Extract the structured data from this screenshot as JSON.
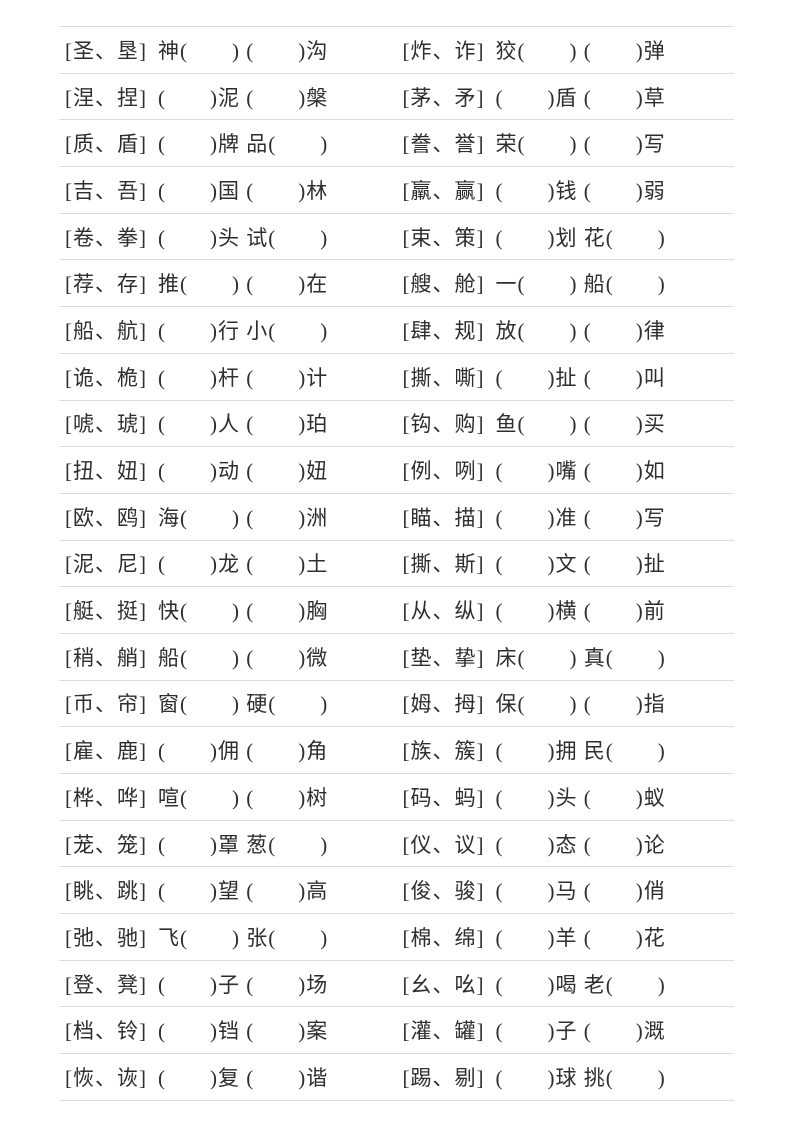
{
  "page": {
    "background_color": "#ffffff",
    "rule_color": "#dcdcdc",
    "text_color": "#2e2e2e"
  },
  "worksheet": {
    "kind": "chinese-character-choice-fill-in-blank-table",
    "columns": 2,
    "rows": [
      {
        "left": {
          "options": "[圣、垦]",
          "blanks": "神(　　) (　　)沟"
        },
        "right": {
          "options": "[炸、诈]",
          "blanks": "狡(　　) (　　)弹"
        }
      },
      {
        "left": {
          "options": "[涅、捏]",
          "blanks": "(　　)泥 (　　)槃"
        },
        "right": {
          "options": "[茅、矛]",
          "blanks": "(　　)盾 (　　)草"
        }
      },
      {
        "left": {
          "options": "[质、盾]",
          "blanks": "(　　)牌 品(　　)"
        },
        "right": {
          "options": "[誊、誉]",
          "blanks": "荣(　　) (　　)写"
        }
      },
      {
        "left": {
          "options": "[吉、吾]",
          "blanks": "(　　)国 (　　)林"
        },
        "right": {
          "options": "[羸、赢]",
          "blanks": "(　　)钱 (　　)弱"
        }
      },
      {
        "left": {
          "options": "[卷、拳]",
          "blanks": "(　　)头 试(　　)"
        },
        "right": {
          "options": "[束、策]",
          "blanks": "(　　)划 花(　　)"
        }
      },
      {
        "left": {
          "options": "[荐、存]",
          "blanks": "推(　　) (　　)在"
        },
        "right": {
          "options": "[艘、舱]",
          "blanks": "一(　　) 船(　　)"
        }
      },
      {
        "left": {
          "options": "[船、航]",
          "blanks": "(　　)行 小(　　)"
        },
        "right": {
          "options": "[肆、规]",
          "blanks": "放(　　) (　　)律"
        }
      },
      {
        "left": {
          "options": "[诡、桅]",
          "blanks": "(　　)杆 (　　)计"
        },
        "right": {
          "options": "[撕、嘶]",
          "blanks": "(　　)扯 (　　)叫"
        }
      },
      {
        "left": {
          "options": "[唬、琥]",
          "blanks": "(　　)人 (　　)珀"
        },
        "right": {
          "options": "[钩、购]",
          "blanks": "鱼(　　) (　　)买"
        }
      },
      {
        "left": {
          "options": "[扭、妞]",
          "blanks": "(　　)动 (　　)妞"
        },
        "right": {
          "options": "[例、咧]",
          "blanks": "(　　)嘴 (　　)如"
        }
      },
      {
        "left": {
          "options": "[欧、鸥]",
          "blanks": "海(　　) (　　)洲"
        },
        "right": {
          "options": "[瞄、描]",
          "blanks": "(　　)准 (　　)写"
        }
      },
      {
        "left": {
          "options": "[泥、尼]",
          "blanks": "(　　)龙 (　　)土"
        },
        "right": {
          "options": "[撕、斯]",
          "blanks": "(　　)文 (　　)扯"
        }
      },
      {
        "left": {
          "options": "[艇、挺]",
          "blanks": "快(　　) (　　)胸"
        },
        "right": {
          "options": "[从、纵]",
          "blanks": "(　　)横 (　　)前"
        }
      },
      {
        "left": {
          "options": "[稍、艄]",
          "blanks": "船(　　) (　　)微"
        },
        "right": {
          "options": "[垫、挚]",
          "blanks": "床(　　) 真(　　)"
        }
      },
      {
        "left": {
          "options": "[币、帘]",
          "blanks": "窗(　　) 硬(　　)"
        },
        "right": {
          "options": "[姆、拇]",
          "blanks": "保(　　) (　　)指"
        }
      },
      {
        "left": {
          "options": "[雇、鹿]",
          "blanks": "(　　)佣 (　　)角"
        },
        "right": {
          "options": "[族、簇]",
          "blanks": "(　　)拥 民(　　)"
        }
      },
      {
        "left": {
          "options": "[桦、哗]",
          "blanks": "喧(　　) (　　)树"
        },
        "right": {
          "options": "[码、蚂]",
          "blanks": "(　　)头 (　　)蚁"
        }
      },
      {
        "left": {
          "options": "[茏、笼]",
          "blanks": "(　　)罩 葱(　　)"
        },
        "right": {
          "options": "[仪、议]",
          "blanks": "(　　)态 (　　)论"
        }
      },
      {
        "left": {
          "options": "[眺、跳]",
          "blanks": "(　　)望 (　　)高"
        },
        "right": {
          "options": "[俊、骏]",
          "blanks": "(　　)马 (　　)俏"
        }
      },
      {
        "left": {
          "options": "[弛、驰]",
          "blanks": "飞(　　) 张(　　)"
        },
        "right": {
          "options": "[棉、绵]",
          "blanks": "(　　)羊 (　　)花"
        }
      },
      {
        "left": {
          "options": "[登、凳]",
          "blanks": "(　　)子 (　　)场"
        },
        "right": {
          "options": "[幺、吆]",
          "blanks": "(　　)喝 老(　　)"
        }
      },
      {
        "left": {
          "options": "[档、铃]",
          "blanks": "(　　)铛 (　　)案"
        },
        "right": {
          "options": "[灌、罐]",
          "blanks": "(　　)子 (　　)溉"
        }
      },
      {
        "left": {
          "options": "[恢、诙]",
          "blanks": "(　　)复 (　　)谐"
        },
        "right": {
          "options": "[踢、剔]",
          "blanks": "(　　)球 挑(　　)"
        }
      }
    ]
  }
}
